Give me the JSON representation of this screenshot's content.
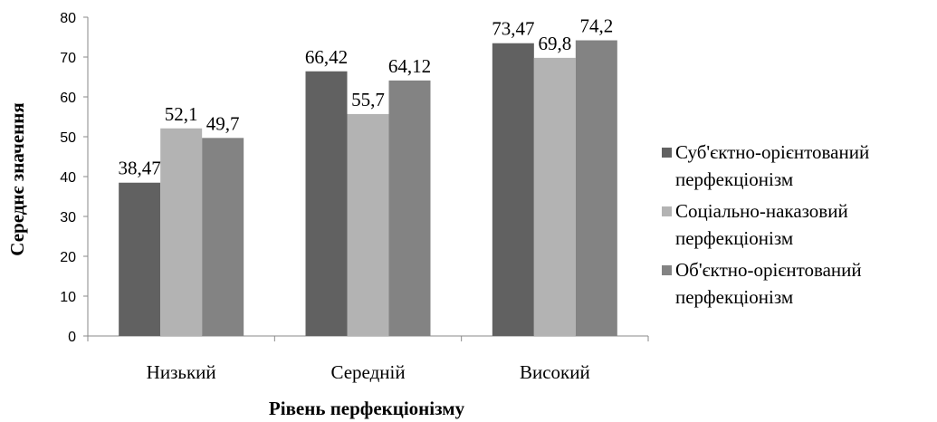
{
  "chart_data": {
    "type": "bar",
    "title": "",
    "xlabel": "Рівень перфекціонізму",
    "ylabel": "Середнє значення",
    "ylim": [
      0,
      80
    ],
    "yticks": [
      0,
      10,
      20,
      30,
      40,
      50,
      60,
      70,
      80
    ],
    "categories": [
      "Низький",
      "Середній",
      "Високий"
    ],
    "series": [
      {
        "name_lines": [
          "Суб'єктно-орієнтований",
          "перфекціонізм"
        ],
        "values": [
          38.47,
          66.42,
          73.47
        ],
        "labels": [
          "38,47",
          "66,42",
          "73,47"
        ],
        "color": "#616161"
      },
      {
        "name_lines": [
          "Соціально-наказовий",
          "перфекціонізм"
        ],
        "values": [
          52.1,
          55.7,
          69.8
        ],
        "labels": [
          "52,1",
          "55,7",
          "69,8"
        ],
        "color": "#b3b3b3"
      },
      {
        "name_lines": [
          "Об'єктно-орієнтований",
          "перфекціонізм"
        ],
        "values": [
          49.7,
          64.12,
          74.2
        ],
        "labels": [
          "49,7",
          "64,12",
          "74,2"
        ],
        "color": "#838383"
      }
    ],
    "grid": false,
    "legend": "right"
  }
}
